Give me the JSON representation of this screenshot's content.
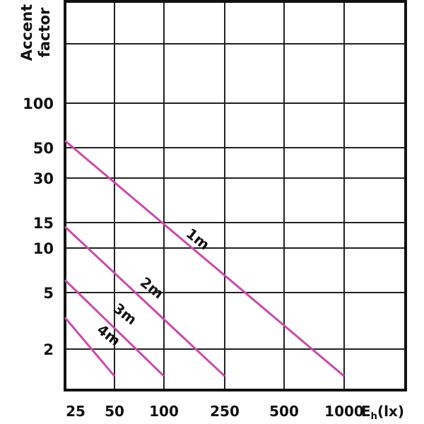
{
  "chart_data": {
    "type": "line",
    "ylabel": [
      "Accent",
      "factor"
    ],
    "x_tick_labels": [
      "25",
      "50",
      "100",
      "250",
      "500",
      "1000"
    ],
    "x_unit": {
      "main": "E",
      "sub": "h",
      "suffix": "(lx)"
    },
    "y_tick_labels": [
      "100",
      "50",
      "30",
      "15",
      "10",
      "5",
      "2"
    ],
    "y_scale": "log",
    "grid": true,
    "line_color": "#cc4aa8",
    "series": [
      {
        "name": "1m",
        "x": [
          "25",
          "1000"
        ],
        "y": [
          55,
          1.3
        ]
      },
      {
        "name": "2m",
        "x": [
          "25",
          "250"
        ],
        "y": [
          14,
          1.3
        ]
      },
      {
        "name": "3m",
        "x": [
          "25",
          "100"
        ],
        "y": [
          6,
          1.3
        ]
      },
      {
        "name": "4m",
        "x": [
          "25",
          "50"
        ],
        "y": [
          3.3,
          1.3
        ]
      }
    ]
  }
}
